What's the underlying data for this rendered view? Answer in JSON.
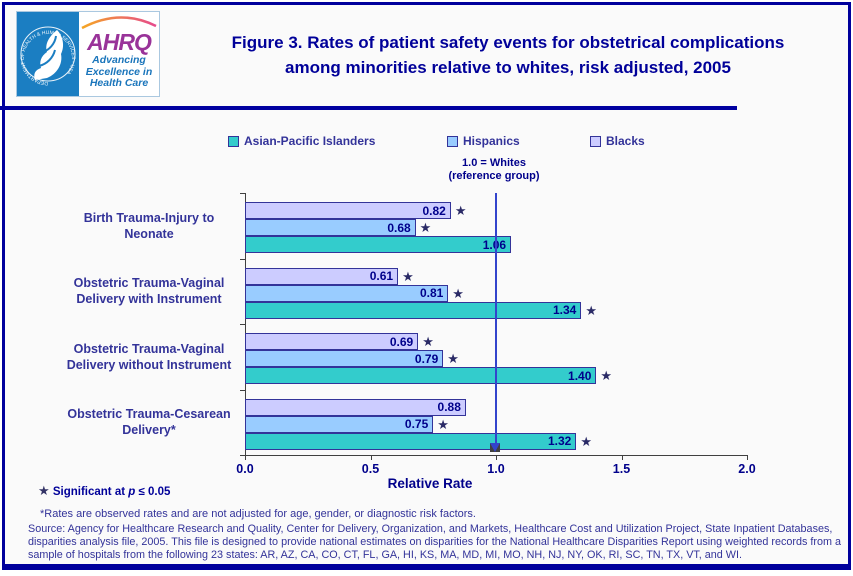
{
  "header": {
    "logo": {
      "hhs_seal_text": "DEPARTMENT OF HEALTH & HUMAN SERVICES - USA",
      "ahrq_acronym": "AHRQ",
      "tagline_line1": "Advancing",
      "tagline_line2": "Excellence in",
      "tagline_line3": "Health Care"
    },
    "title_line1": "Figure 3. Rates of patient safety events for obstetrical complications",
    "title_line2": "among minorities relative to whites, risk adjusted, 2005"
  },
  "legend": {
    "items": [
      {
        "label": "Asian-Pacific Islanders",
        "color": "#33cccc"
      },
      {
        "label": "Hispanics",
        "color": "#99ccff"
      },
      {
        "label": "Blacks",
        "color": "#ccccff"
      }
    ]
  },
  "reference_note": {
    "line1": "1.0 = Whites",
    "line2": "(reference group)"
  },
  "chart_data": {
    "type": "bar",
    "orientation": "horizontal",
    "title": "Figure 3. Rates of patient safety events for obstetrical complications among minorities relative to whites, risk adjusted, 2005",
    "xlabel": "Relative Rate",
    "xlim": [
      0.0,
      2.0
    ],
    "xticks": [
      0.0,
      0.5,
      1.0,
      1.5,
      2.0
    ],
    "xtick_labels": [
      "0.0",
      "0.5",
      "1.0",
      "1.5",
      "2.0"
    ],
    "reference_line": {
      "x": 1.0,
      "label": "1.0 = Whites (reference group)",
      "color": "#3344cc"
    },
    "categories": [
      "Birth Trauma-Injury to Neonate",
      "Obstetric Trauma-Vaginal Delivery with Instrument",
      "Obstetric Trauma-Vaginal Delivery without Instrument",
      "Obstetric Trauma-Cesarean Delivery*"
    ],
    "bar_order_top_to_bottom": [
      "Blacks",
      "Hispanics",
      "Asian-Pacific Islanders"
    ],
    "series": [
      {
        "name": "Blacks",
        "color": "#ccccff",
        "values": [
          0.82,
          0.61,
          0.69,
          0.88
        ],
        "significant": [
          true,
          true,
          true,
          false
        ]
      },
      {
        "name": "Hispanics",
        "color": "#99ccff",
        "values": [
          0.68,
          0.81,
          0.79,
          0.75
        ],
        "significant": [
          true,
          true,
          true,
          true
        ]
      },
      {
        "name": "Asian-Pacific Islanders",
        "color": "#33cccc",
        "values": [
          1.06,
          1.34,
          1.4,
          1.32
        ],
        "significant": [
          false,
          true,
          true,
          true
        ]
      }
    ],
    "significance_marker": "★",
    "grid": false,
    "legend_position": "top"
  },
  "footnotes": {
    "significance": {
      "star": "★",
      "text_before_p": " Significant at ",
      "p": "p",
      "text_after_p": " ≤ 0.05"
    },
    "rates_note": "*Rates are observed rates and are not adjusted for age, gender, or diagnostic risk factors.",
    "source": "Source: Agency for Healthcare Research and Quality, Center for Delivery, Organization, and Markets, Healthcare Cost and Utilization Project, State Inpatient Databases, disparities analysis file, 2005. This file is designed to provide national estimates on disparities for the National Healthcare Disparities Report using weighted records from a sample of hospitals from the following 23 states: AR, AZ, CA, CO, CT, FL, GA, HI, KS, MA, MD, MI, MO, NH, NJ, NY, OK, RI, SC, TN, TX, VT, and WI."
  },
  "colors": {
    "frame": "#00009c",
    "title_text": "#000099",
    "body_text": "#333399",
    "bar_border": "#333399",
    "value_label": "#00008b",
    "axis": "#404040",
    "hhs_blue": "#1b7ec2",
    "ahrq_purple": "#993399"
  }
}
